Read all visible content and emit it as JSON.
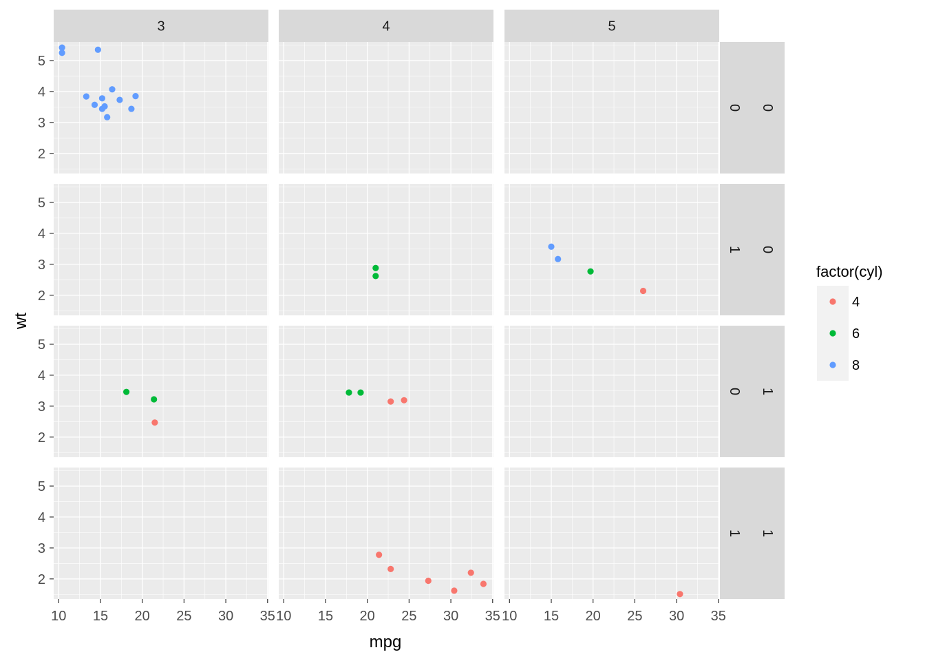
{
  "chart_data": {
    "type": "scatter",
    "facet": {
      "cols_var_values": [
        "3",
        "4",
        "5"
      ],
      "rows_vs_values": [
        "0",
        "1",
        "0",
        "1"
      ],
      "rows_am_values": [
        "0",
        "0",
        "1",
        "1"
      ]
    },
    "x": {
      "label": "mpg",
      "ticks": [
        10,
        15,
        20,
        25,
        30,
        35
      ],
      "tick_labels": [
        "10",
        "15",
        "20",
        "25",
        "30",
        "35"
      ],
      "range": [
        9.4,
        35.1
      ]
    },
    "y": {
      "label": "wt",
      "ticks": [
        2,
        3,
        4,
        5
      ],
      "tick_labels": [
        "2",
        "3",
        "4",
        "5"
      ],
      "range": [
        1.35,
        5.6
      ]
    },
    "legend": {
      "title": "factor(cyl)",
      "placement": "right",
      "items": [
        {
          "label": "4",
          "color": "#F8766D"
        },
        {
          "label": "6",
          "color": "#00BA38"
        },
        {
          "label": "8",
          "color": "#619CFF"
        }
      ]
    },
    "grid": true,
    "points": [
      {
        "row": 0,
        "col": 0,
        "cyl": "8",
        "mpg": 10.4,
        "wt": 5.42
      },
      {
        "row": 0,
        "col": 0,
        "cyl": "8",
        "mpg": 10.4,
        "wt": 5.25
      },
      {
        "row": 0,
        "col": 0,
        "cyl": "8",
        "mpg": 14.7,
        "wt": 5.35
      },
      {
        "row": 0,
        "col": 0,
        "cyl": "8",
        "mpg": 13.3,
        "wt": 3.84
      },
      {
        "row": 0,
        "col": 0,
        "cyl": "8",
        "mpg": 14.3,
        "wt": 3.57
      },
      {
        "row": 0,
        "col": 0,
        "cyl": "8",
        "mpg": 15.2,
        "wt": 3.78
      },
      {
        "row": 0,
        "col": 0,
        "cyl": "8",
        "mpg": 16.4,
        "wt": 4.07
      },
      {
        "row": 0,
        "col": 0,
        "cyl": "8",
        "mpg": 17.3,
        "wt": 3.73
      },
      {
        "row": 0,
        "col": 0,
        "cyl": "8",
        "mpg": 19.2,
        "wt": 3.85
      },
      {
        "row": 0,
        "col": 0,
        "cyl": "8",
        "mpg": 15.2,
        "wt": 3.44
      },
      {
        "row": 0,
        "col": 0,
        "cyl": "8",
        "mpg": 15.5,
        "wt": 3.52
      },
      {
        "row": 0,
        "col": 0,
        "cyl": "8",
        "mpg": 15.8,
        "wt": 3.17
      },
      {
        "row": 0,
        "col": 0,
        "cyl": "8",
        "mpg": 18.7,
        "wt": 3.44
      },
      {
        "row": 1,
        "col": 1,
        "cyl": "6",
        "mpg": 21.0,
        "wt": 2.88
      },
      {
        "row": 1,
        "col": 1,
        "cyl": "6",
        "mpg": 21.0,
        "wt": 2.62
      },
      {
        "row": 1,
        "col": 2,
        "cyl": "8",
        "mpg": 15.0,
        "wt": 3.57
      },
      {
        "row": 1,
        "col": 2,
        "cyl": "8",
        "mpg": 15.8,
        "wt": 3.17
      },
      {
        "row": 1,
        "col": 2,
        "cyl": "6",
        "mpg": 19.7,
        "wt": 2.77
      },
      {
        "row": 1,
        "col": 2,
        "cyl": "4",
        "mpg": 26.0,
        "wt": 2.14
      },
      {
        "row": 2,
        "col": 0,
        "cyl": "6",
        "mpg": 18.1,
        "wt": 3.46
      },
      {
        "row": 2,
        "col": 0,
        "cyl": "6",
        "mpg": 21.4,
        "wt": 3.22
      },
      {
        "row": 2,
        "col": 0,
        "cyl": "4",
        "mpg": 21.5,
        "wt": 2.47
      },
      {
        "row": 2,
        "col": 1,
        "cyl": "6",
        "mpg": 17.8,
        "wt": 3.44
      },
      {
        "row": 2,
        "col": 1,
        "cyl": "6",
        "mpg": 19.2,
        "wt": 3.44
      },
      {
        "row": 2,
        "col": 1,
        "cyl": "4",
        "mpg": 22.8,
        "wt": 3.15
      },
      {
        "row": 2,
        "col": 1,
        "cyl": "4",
        "mpg": 24.4,
        "wt": 3.19
      },
      {
        "row": 3,
        "col": 1,
        "cyl": "4",
        "mpg": 21.4,
        "wt": 2.78
      },
      {
        "row": 3,
        "col": 1,
        "cyl": "4",
        "mpg": 22.8,
        "wt": 2.32
      },
      {
        "row": 3,
        "col": 1,
        "cyl": "4",
        "mpg": 27.3,
        "wt": 1.94
      },
      {
        "row": 3,
        "col": 1,
        "cyl": "4",
        "mpg": 30.4,
        "wt": 1.62
      },
      {
        "row": 3,
        "col": 1,
        "cyl": "4",
        "mpg": 32.4,
        "wt": 2.2
      },
      {
        "row": 3,
        "col": 1,
        "cyl": "4",
        "mpg": 33.9,
        "wt": 1.84
      },
      {
        "row": 3,
        "col": 2,
        "cyl": "4",
        "mpg": 30.4,
        "wt": 1.51
      }
    ]
  }
}
